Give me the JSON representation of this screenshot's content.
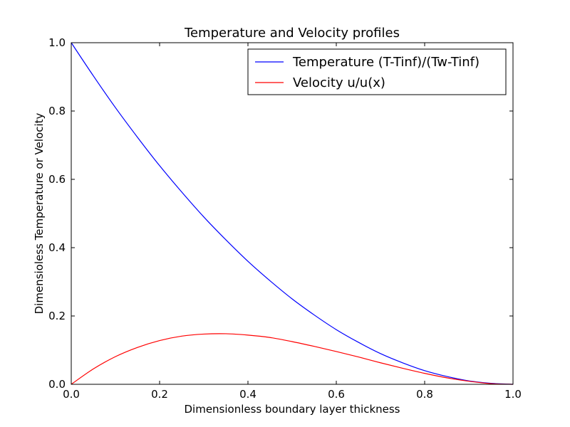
{
  "chart_data": {
    "type": "line",
    "title": "Temperature and Velocity profiles",
    "xlabel": "Dimensionless boundary layer thickness",
    "ylabel": "Dimensioless Temperature or Velocity",
    "xlim": [
      0.0,
      1.0
    ],
    "ylim": [
      0.0,
      1.0
    ],
    "xticks": [
      "0.0",
      "0.2",
      "0.4",
      "0.6",
      "0.8",
      "1.0"
    ],
    "yticks": [
      "0.0",
      "0.2",
      "0.4",
      "0.6",
      "0.8",
      "1.0"
    ],
    "grid": false,
    "legend_position": "top-right",
    "x": [
      0.0,
      0.05,
      0.1,
      0.15,
      0.2,
      0.25,
      0.3,
      0.35,
      0.4,
      0.45,
      0.5,
      0.55,
      0.6,
      0.65,
      0.7,
      0.75,
      0.8,
      0.85,
      0.9,
      0.95,
      1.0
    ],
    "series": [
      {
        "name": "Temperature (T-Tinf)/(Tw-Tinf)",
        "color": "#0000ff",
        "values": [
          1.0,
          0.903,
          0.81,
          0.723,
          0.64,
          0.563,
          0.49,
          0.423,
          0.36,
          0.303,
          0.25,
          0.203,
          0.16,
          0.123,
          0.09,
          0.063,
          0.04,
          0.023,
          0.01,
          0.003,
          0.0
        ]
      },
      {
        "name": "Velocity u/u(x)",
        "color": "#ff0000",
        "values": [
          0.0,
          0.045,
          0.081,
          0.108,
          0.128,
          0.141,
          0.147,
          0.148,
          0.144,
          0.137,
          0.125,
          0.111,
          0.096,
          0.08,
          0.063,
          0.047,
          0.032,
          0.019,
          0.009,
          0.002,
          0.0
        ]
      }
    ]
  }
}
